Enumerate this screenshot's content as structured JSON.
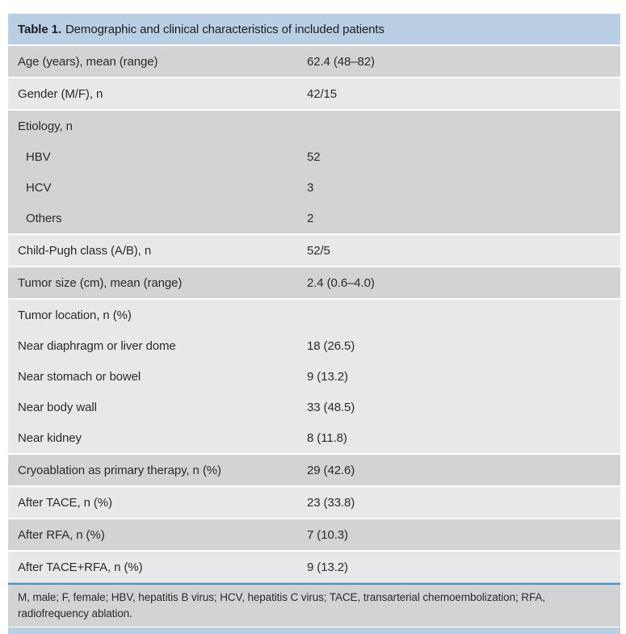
{
  "colors": {
    "header_bg": "#b9cfe4",
    "row_dark": "#d2d3d4",
    "row_light": "#e7e8e9",
    "divider_dark": "#4793c4",
    "divider_light": "#a9cbe2",
    "text": "#2b2b2b",
    "page_bg": "#ffffff"
  },
  "table": {
    "title": {
      "bold": "Table 1.",
      "rest": "Demographic and clinical characteristics of included patients"
    },
    "blocks": [
      {
        "shade": "dark",
        "rows": [
          {
            "label": "Age (years), mean (range)",
            "value": "62.4 (48–82)"
          }
        ]
      },
      {
        "shade": "light",
        "rows": [
          {
            "label": "Gender (M/F), n",
            "value": "42/15"
          }
        ]
      },
      {
        "shade": "dark",
        "rows": [
          {
            "label": "Etiology, n",
            "value": ""
          },
          {
            "label": "HBV",
            "value": "52",
            "indent": true
          },
          {
            "label": "HCV",
            "value": "3",
            "indent": true
          },
          {
            "label": "Others",
            "value": "2",
            "indent": true
          }
        ]
      },
      {
        "shade": "light",
        "rows": [
          {
            "label": "Child-Pugh class (A/B), n",
            "value": "52/5"
          }
        ]
      },
      {
        "shade": "dark",
        "rows": [
          {
            "label": "Tumor size (cm), mean (range)",
            "value": "2.4 (0.6–4.0)"
          }
        ]
      },
      {
        "shade": "light",
        "rows": [
          {
            "label": "Tumor location, n (%)",
            "value": ""
          },
          {
            "label": "Near diaphragm or liver dome",
            "value": "18 (26.5)"
          },
          {
            "label": "Near stomach or bowel",
            "value": "9 (13.2)"
          },
          {
            "label": "Near body wall",
            "value": "33 (48.5)"
          },
          {
            "label": "Near kidney",
            "value": "8 (11.8)"
          }
        ]
      },
      {
        "shade": "dark",
        "rows": [
          {
            "label": "Cryoablation as primary therapy, n (%)",
            "value": "29 (42.6)"
          }
        ]
      },
      {
        "shade": "light",
        "rows": [
          {
            "label": "After TACE, n (%)",
            "value": "23 (33.8)"
          }
        ]
      },
      {
        "shade": "dark",
        "rows": [
          {
            "label": "After RFA, n (%)",
            "value": "7 (10.3)"
          }
        ]
      },
      {
        "shade": "light",
        "rows": [
          {
            "label": "After TACE+RFA, n (%)",
            "value": "9 (13.2)"
          }
        ]
      }
    ],
    "footnote": "M, male; F, female; HBV, hepatitis B virus; HCV, hepatitis C virus; TACE, transarterial chemoembolization; RFA, radiofrequency ablation."
  }
}
